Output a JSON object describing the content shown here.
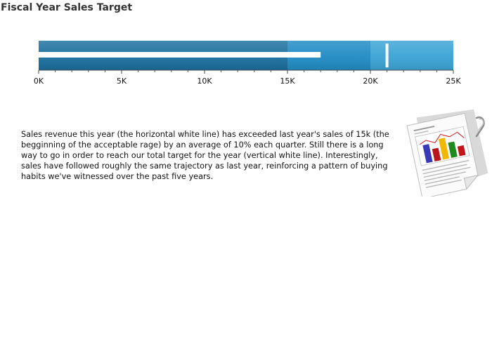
{
  "title": "Fiscal Year Sales Target",
  "description": "Sales revenue this year (the horizontal white line) has exceeded last year's sales of 15k (the begginning of the acceptable rage)  by an average of 10% each quarter. Still there is a long way to go in order to reach our total target  for the year (vertical white line). Interestingly, sales have followed roughly the same trajectory as last year, reinforcing a pattern of buying habits we've witnessed over the past five years.",
  "icon": "report-chart-icon",
  "chart_data": {
    "type": "bullet",
    "title": "Fiscal Year Sales Target",
    "min": 0,
    "max": 25000,
    "ranges": [
      {
        "from": 0,
        "to": 15000,
        "color": "#1a6e9e"
      },
      {
        "from": 15000,
        "to": 20000,
        "color": "#1f8bc3"
      },
      {
        "from": 20000,
        "to": 25000,
        "color": "#3aa3d5"
      }
    ],
    "actual": 17000,
    "target": 21000,
    "ticks": [
      {
        "value": 0,
        "label": "0K"
      },
      {
        "value": 5000,
        "label": "5K"
      },
      {
        "value": 10000,
        "label": "10K"
      },
      {
        "value": 15000,
        "label": "15K"
      },
      {
        "value": 20000,
        "label": "20K"
      },
      {
        "value": 25000,
        "label": "25K"
      }
    ],
    "minor_tick_step": 1000
  }
}
